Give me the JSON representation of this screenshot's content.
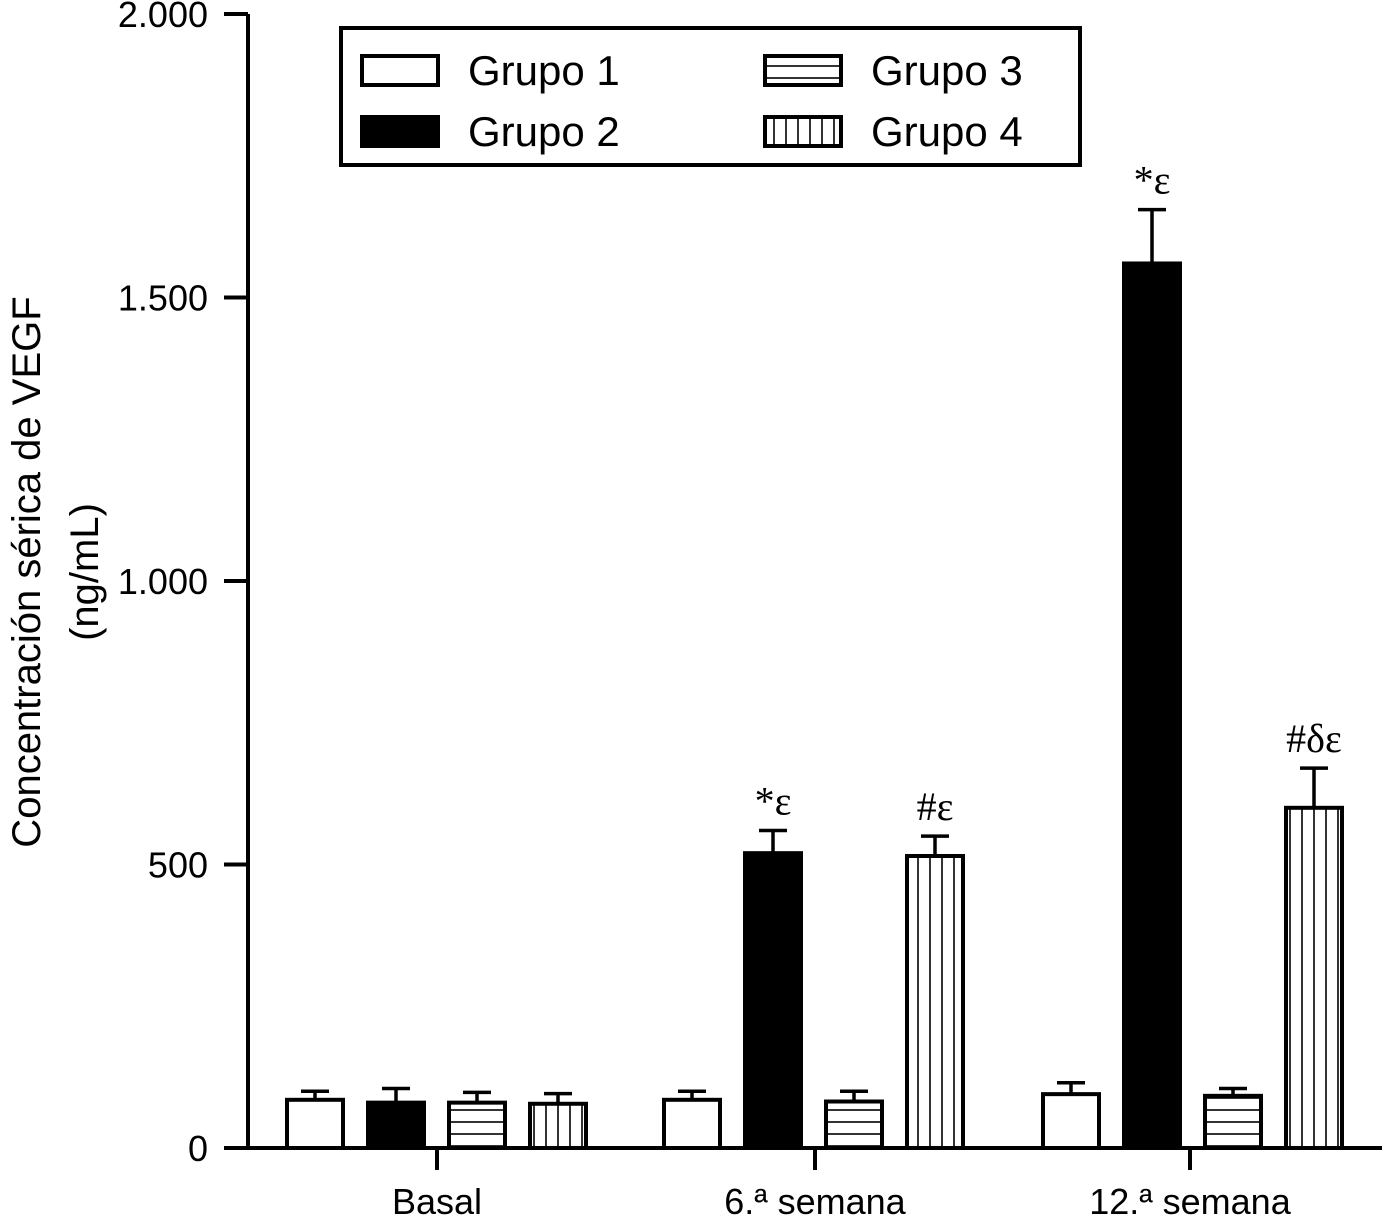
{
  "chart_data": {
    "type": "bar",
    "title": "",
    "ylabel_line1": "Concentración sérica de VEGF",
    "ylabel_line2": "(ng/mL)",
    "xlabel": "",
    "ylim": [
      0,
      2000
    ],
    "yticks": [
      0,
      500,
      1000,
      1500,
      2000
    ],
    "ytick_labels": [
      "0",
      "500",
      "1.000",
      "1.500",
      "2.000"
    ],
    "categories": [
      "Basal",
      "6.ª semana",
      "12.ª semana"
    ],
    "legend_position": "top",
    "series": [
      {
        "name": "Grupo 1",
        "pattern": "white",
        "values": [
          85,
          85,
          95
        ],
        "errors": [
          15,
          15,
          20
        ]
      },
      {
        "name": "Grupo 2",
        "pattern": "black",
        "values": [
          80,
          520,
          1560
        ],
        "errors": [
          25,
          40,
          95
        ]
      },
      {
        "name": "Grupo 3",
        "pattern": "horizontal",
        "values": [
          80,
          82,
          92
        ],
        "errors": [
          18,
          18,
          13
        ]
      },
      {
        "name": "Grupo 4",
        "pattern": "vertical",
        "values": [
          78,
          515,
          600
        ],
        "errors": [
          18,
          35,
          70
        ]
      }
    ],
    "annotations": [
      {
        "category": 1,
        "series": 1,
        "text": "*ε"
      },
      {
        "category": 1,
        "series": 3,
        "text": "#ε"
      },
      {
        "category": 2,
        "series": 1,
        "text": "*ε"
      },
      {
        "category": 2,
        "series": 3,
        "text": "#δε"
      }
    ]
  }
}
